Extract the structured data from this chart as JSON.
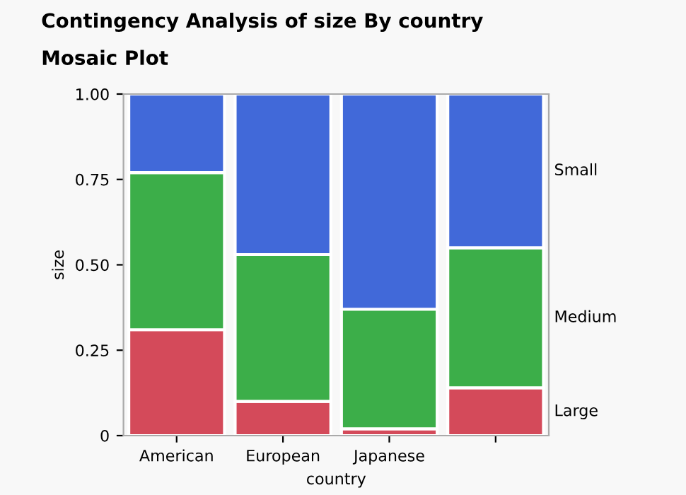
{
  "chart_data": {
    "type": "bar",
    "stacked": true,
    "title": "Contingency Analysis of size By country",
    "subtitle": "Mosaic Plot",
    "xlabel": "country",
    "ylabel": "size",
    "categories": [
      "American",
      "European",
      "Japanese",
      null
    ],
    "series": [
      {
        "name": "Large",
        "color": "#d44a5a",
        "values": [
          0.31,
          0.1,
          0.02,
          0.14
        ]
      },
      {
        "name": "Medium",
        "color": "#3cae49",
        "values": [
          0.46,
          0.43,
          0.35,
          0.41
        ]
      },
      {
        "name": "Small",
        "color": "#4169d9",
        "values": [
          0.23,
          0.47,
          0.63,
          0.45
        ]
      }
    ],
    "ylim": [
      0,
      1
    ],
    "yticks": [
      0,
      {
        "value": 0.25,
        "label": "0.25"
      },
      {
        "value": 0.5,
        "label": "0.50"
      },
      {
        "value": 0.75,
        "label": "0.75"
      },
      {
        "value": 1,
        "label": "1.00"
      }
    ],
    "grid": false
  }
}
